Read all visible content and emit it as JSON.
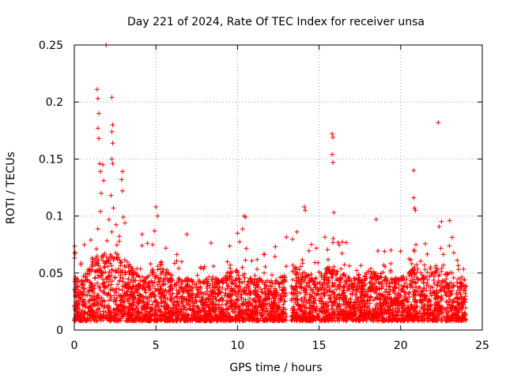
{
  "chart_data": {
    "type": "scatter",
    "title": "Day 221 of 2024, Rate Of TEC Index for receiver unsa",
    "xlabel": "GPS time / hours",
    "ylabel": "ROTI / TECUs",
    "xlim": [
      0,
      25
    ],
    "ylim": [
      0,
      0.25
    ],
    "xticks": [
      0,
      5,
      10,
      15,
      20,
      25
    ],
    "xtick_labels": [
      "0",
      "5",
      "10",
      "15",
      "20",
      "25"
    ],
    "yticks": [
      0,
      0.05,
      0.1,
      0.15,
      0.2,
      0.25
    ],
    "ytick_labels": [
      "0",
      "0.05",
      "0.1",
      "0.15",
      "0.2",
      "0.25"
    ],
    "grid": true,
    "marker": "plus",
    "marker_color": "#ff0000",
    "data_range_hours": [
      0,
      24
    ],
    "data_gap_hours": [
      13.0,
      13.3
    ],
    "baseline_band": [
      0.008,
      0.045
    ],
    "peaks": [
      {
        "x": 0.05,
        "y": 0.067
      },
      {
        "x": 1.4,
        "y": 0.211
      },
      {
        "x": 1.45,
        "y": 0.203
      },
      {
        "x": 1.5,
        "y": 0.19
      },
      {
        "x": 1.45,
        "y": 0.177
      },
      {
        "x": 1.5,
        "y": 0.168
      },
      {
        "x": 1.55,
        "y": 0.146
      },
      {
        "x": 1.6,
        "y": 0.139
      },
      {
        "x": 1.65,
        "y": 0.12
      },
      {
        "x": 1.6,
        "y": 0.104
      },
      {
        "x": 1.75,
        "y": 0.145
      },
      {
        "x": 1.8,
        "y": 0.131
      },
      {
        "x": 1.95,
        "y": 0.25
      },
      {
        "x": 2.3,
        "y": 0.204
      },
      {
        "x": 2.35,
        "y": 0.18
      },
      {
        "x": 2.3,
        "y": 0.174
      },
      {
        "x": 2.35,
        "y": 0.164
      },
      {
        "x": 2.3,
        "y": 0.15
      },
      {
        "x": 2.35,
        "y": 0.146
      },
      {
        "x": 2.25,
        "y": 0.118
      },
      {
        "x": 2.4,
        "y": 0.107
      },
      {
        "x": 2.95,
        "y": 0.139
      },
      {
        "x": 2.9,
        "y": 0.132
      },
      {
        "x": 2.95,
        "y": 0.122
      },
      {
        "x": 3.0,
        "y": 0.099
      },
      {
        "x": 3.1,
        "y": 0.094
      },
      {
        "x": 4.15,
        "y": 0.084
      },
      {
        "x": 5.0,
        "y": 0.108
      },
      {
        "x": 5.1,
        "y": 0.1
      },
      {
        "x": 6.9,
        "y": 0.084
      },
      {
        "x": 10.0,
        "y": 0.085
      },
      {
        "x": 10.4,
        "y": 0.1
      },
      {
        "x": 10.5,
        "y": 0.099
      },
      {
        "x": 14.1,
        "y": 0.108
      },
      {
        "x": 14.15,
        "y": 0.105
      },
      {
        "x": 15.8,
        "y": 0.172
      },
      {
        "x": 15.85,
        "y": 0.169
      },
      {
        "x": 15.8,
        "y": 0.154
      },
      {
        "x": 15.85,
        "y": 0.147
      },
      {
        "x": 15.9,
        "y": 0.103
      },
      {
        "x": 18.5,
        "y": 0.097
      },
      {
        "x": 20.8,
        "y": 0.14
      },
      {
        "x": 20.8,
        "y": 0.116
      },
      {
        "x": 20.85,
        "y": 0.107
      },
      {
        "x": 20.9,
        "y": 0.105
      },
      {
        "x": 22.3,
        "y": 0.182
      },
      {
        "x": 22.5,
        "y": 0.095
      },
      {
        "x": 23.0,
        "y": 0.096
      }
    ]
  }
}
